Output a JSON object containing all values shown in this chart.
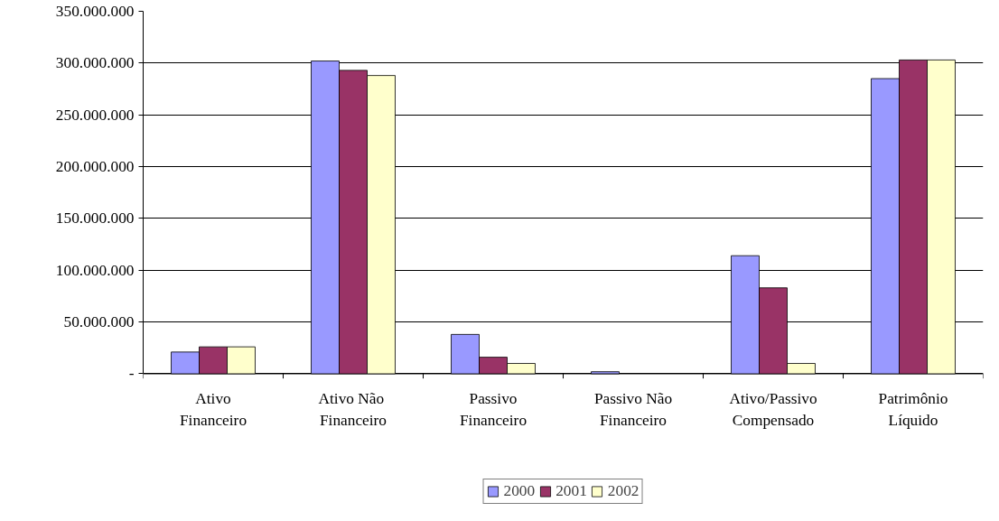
{
  "chart_data": {
    "type": "bar",
    "categories": [
      "Ativo Financeiro",
      "Ativo  Não Financeiro",
      "Passivo Financeiro",
      "Passivo Não Financeiro",
      "Ativo/Passivo Compensado",
      "Patrimônio Líquido"
    ],
    "series": [
      {
        "name": "2000",
        "color": "#9999ff",
        "values": [
          21000000,
          302000000,
          38000000,
          2000000,
          114000000,
          285000000
        ]
      },
      {
        "name": "2001",
        "color": "#993366",
        "values": [
          26000000,
          293000000,
          16000000,
          null,
          83000000,
          303000000
        ]
      },
      {
        "name": "2002",
        "color": "#ffffcc",
        "values": [
          26000000,
          288000000,
          10000000,
          null,
          10000000,
          303000000
        ]
      }
    ],
    "ylim": [
      0,
      350000000
    ],
    "yticks": [
      {
        "value": 0,
        "label": "-"
      },
      {
        "value": 50000000,
        "label": "50.000.000"
      },
      {
        "value": 100000000,
        "label": "100.000.000"
      },
      {
        "value": 150000000,
        "label": "150.000.000"
      },
      {
        "value": 200000000,
        "label": "200.000.000"
      },
      {
        "value": 250000000,
        "label": "250.000.000"
      },
      {
        "value": 300000000,
        "label": "300.000.000"
      },
      {
        "value": 350000000,
        "label": "350.000.000"
      }
    ],
    "grid": "y",
    "legend": "bottom"
  }
}
